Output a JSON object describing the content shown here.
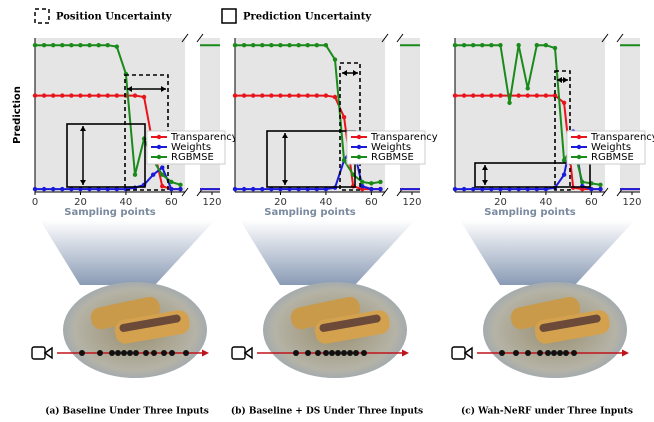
{
  "legend_items": {
    "position": "Position Uncertainty",
    "prediction": "Prediction Uncertainty"
  },
  "chart_data": [
    {
      "type": "line",
      "caption": "(a) Baseline Under Three Inputs",
      "xlabel": "Sampling points",
      "ylabel": "Prediction",
      "x": [
        0,
        4,
        8,
        12,
        16,
        20,
        24,
        28,
        32,
        36,
        40,
        44,
        48,
        52,
        56,
        60,
        64,
        120
      ],
      "xlim": [
        [
          0,
          66
        ],
        [
          114,
          124
        ]
      ],
      "xticks": [
        0,
        20,
        40,
        60,
        120
      ],
      "ylim": [
        -0.02,
        1.05
      ],
      "legend": "right",
      "series": [
        {
          "name": "Transparency",
          "color": "#e8141c",
          "values": [
            0.65,
            0.65,
            0.65,
            0.65,
            0.65,
            0.65,
            0.65,
            0.65,
            0.65,
            0.65,
            0.65,
            0.65,
            0.64,
            0.3,
            0.02,
            0,
            0,
            0
          ]
        },
        {
          "name": "Weights",
          "color": "#1a1adb",
          "values": [
            0,
            0,
            0,
            0,
            0,
            0,
            0,
            0,
            0,
            0,
            0,
            0.01,
            0.03,
            0.1,
            0.15,
            0,
            0,
            0
          ]
        },
        {
          "name": "RGBMSE",
          "color": "#1a8a1a",
          "values": [
            1,
            1,
            1,
            1,
            1,
            1,
            1,
            1,
            1,
            0.99,
            0.8,
            0.1,
            0.35,
            0.2,
            0.1,
            0.05,
            0.03,
            1
          ]
        }
      ]
    },
    {
      "type": "line",
      "caption": "(b) Baseline + DS Under Three Inputs",
      "xlabel": "Sampling points",
      "x": [
        0,
        4,
        8,
        12,
        16,
        20,
        24,
        28,
        32,
        36,
        40,
        44,
        48,
        52,
        56,
        60,
        64,
        120
      ],
      "xlim": [
        [
          0,
          66
        ],
        [
          114,
          124
        ]
      ],
      "xticks": [
        20,
        40,
        60,
        120
      ],
      "ylim": [
        -0.02,
        1.05
      ],
      "legend": "right",
      "series": [
        {
          "name": "Transparency",
          "color": "#e8141c",
          "values": [
            0.65,
            0.65,
            0.65,
            0.65,
            0.65,
            0.65,
            0.65,
            0.65,
            0.65,
            0.65,
            0.65,
            0.64,
            0.5,
            0.02,
            0,
            0,
            0,
            0
          ]
        },
        {
          "name": "Weights",
          "color": "#1a1adb",
          "values": [
            0,
            0,
            0,
            0,
            0,
            0,
            0,
            0,
            0,
            0,
            0,
            0.01,
            0.2,
            0.3,
            0.02,
            0,
            0,
            0
          ]
        },
        {
          "name": "RGBMSE",
          "color": "#1a8a1a",
          "values": [
            1,
            1,
            1,
            1,
            1,
            1,
            1,
            1,
            1,
            1,
            1,
            0.9,
            0.2,
            0.1,
            0.05,
            0.04,
            0.05,
            1
          ]
        }
      ]
    },
    {
      "type": "line",
      "caption": "(c) Wah-NeRF under Three Inputs",
      "xlabel": "Sampling points",
      "x": [
        0,
        4,
        8,
        12,
        16,
        20,
        24,
        28,
        32,
        36,
        40,
        44,
        48,
        52,
        56,
        60,
        64,
        120
      ],
      "xlim": [
        [
          0,
          66
        ],
        [
          114,
          124
        ]
      ],
      "xticks": [
        20,
        40,
        60,
        120
      ],
      "ylim": [
        -0.02,
        1.05
      ],
      "legend": "right",
      "series": [
        {
          "name": "Transparency",
          "color": "#e8141c",
          "values": [
            0.65,
            0.65,
            0.65,
            0.65,
            0.65,
            0.65,
            0.65,
            0.65,
            0.65,
            0.65,
            0.65,
            0.65,
            0.6,
            0.01,
            0,
            0,
            0,
            0
          ]
        },
        {
          "name": "Weights",
          "color": "#1a1adb",
          "values": [
            0,
            0,
            0,
            0,
            0,
            0,
            0,
            0,
            0,
            0,
            0,
            0.01,
            0.1,
            0.4,
            0.02,
            0,
            0,
            0
          ]
        },
        {
          "name": "RGBMSE",
          "color": "#1a8a1a",
          "values": [
            1,
            1,
            1,
            1,
            1,
            1,
            0.6,
            1,
            0.7,
            1,
            1,
            0.98,
            0.2,
            0.3,
            0.05,
            0.04,
            0.03,
            1
          ]
        }
      ]
    }
  ]
}
